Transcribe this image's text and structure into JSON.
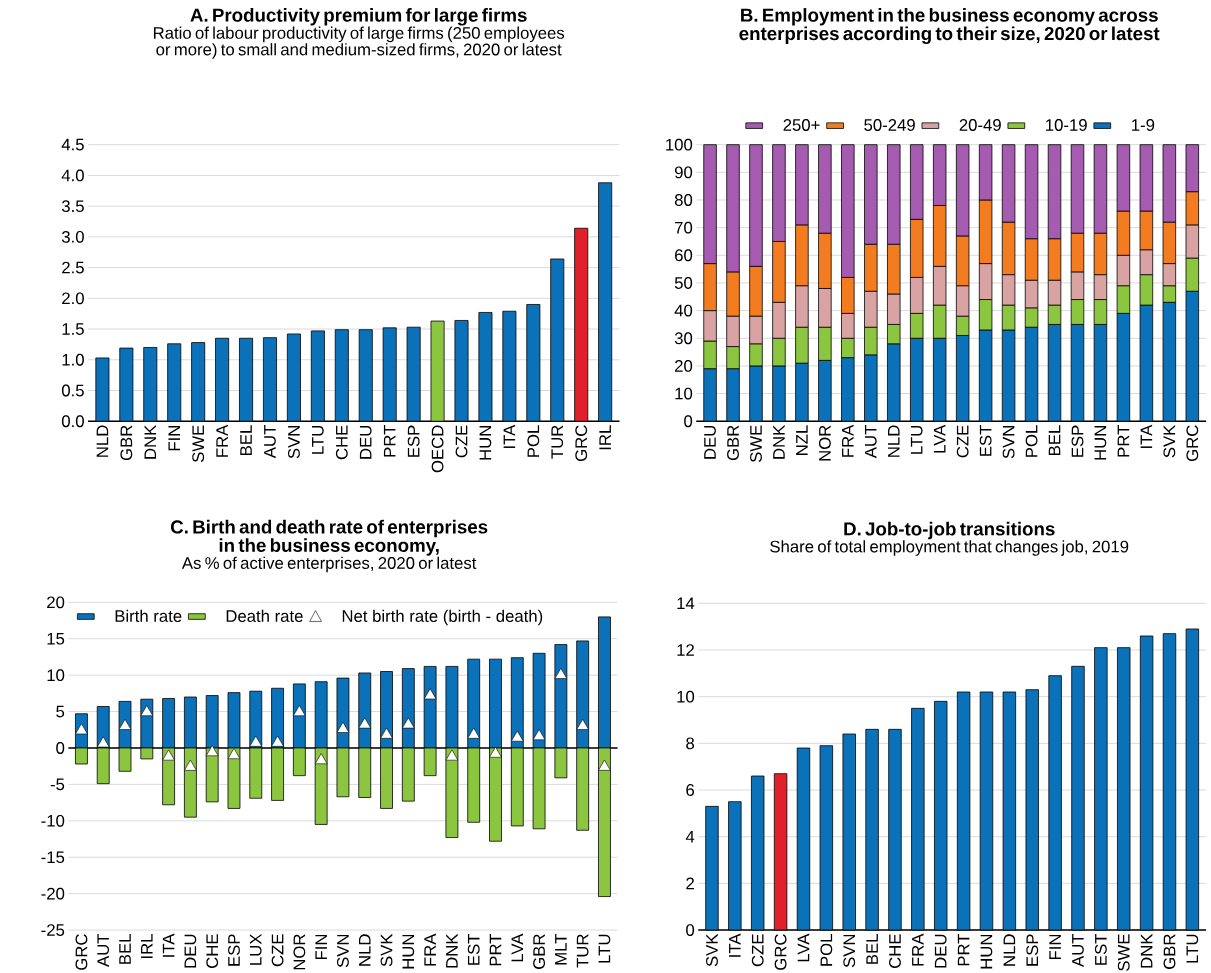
{
  "chart_data": [
    {
      "type": "bar",
      "title": "A.  Productivity premium for large firms",
      "subtitle": "Ratio of labour productivity of large firms (250 employees or more) to small and medium-sized firms, 2020 or latest",
      "categories": [
        "NLD",
        "GBR",
        "DNK",
        "FIN",
        "SWE",
        "FRA",
        "BEL",
        "AUT",
        "SVN",
        "LTU",
        "CHE",
        "DEU",
        "PRT",
        "ESP",
        "OECD",
        "CZE",
        "HUN",
        "ITA",
        "POL",
        "TUR",
        "GRC",
        "IRL"
      ],
      "values": [
        1.03,
        1.19,
        1.2,
        1.26,
        1.28,
        1.35,
        1.35,
        1.36,
        1.42,
        1.47,
        1.49,
        1.49,
        1.52,
        1.53,
        1.63,
        1.64,
        1.77,
        1.79,
        1.9,
        2.64,
        3.14,
        3.88
      ],
      "colors": [
        "#0b72ba",
        "#0b72ba",
        "#0b72ba",
        "#0b72ba",
        "#0b72ba",
        "#0b72ba",
        "#0b72ba",
        "#0b72ba",
        "#0b72ba",
        "#0b72ba",
        "#0b72ba",
        "#0b72ba",
        "#0b72ba",
        "#0b72ba",
        "#8cc540",
        "#0b72ba",
        "#0b72ba",
        "#0b72ba",
        "#0b72ba",
        "#0b72ba",
        "#e0202a",
        "#0b72ba"
      ],
      "ylim": [
        0,
        4.5
      ],
      "yticks": [
        {
          "value": 0,
          "label": "0.0"
        },
        {
          "value": 0.5,
          "label": "0.5"
        },
        {
          "value": 1,
          "label": "1.0"
        },
        {
          "value": 1.5,
          "label": "1.5"
        },
        {
          "value": 2,
          "label": "2.0"
        },
        {
          "value": 2.5,
          "label": "2.5"
        },
        {
          "value": 3,
          "label": "3.0"
        },
        {
          "value": 3.5,
          "label": "3.5"
        },
        {
          "value": 4,
          "label": "4.0"
        },
        {
          "value": 4.5,
          "label": "4.5"
        }
      ],
      "grid": "y"
    },
    {
      "type": "bar",
      "stacked": true,
      "title": "B.  Employment in the business economy across enterprises according to their size, 2020 or latest",
      "categories": [
        "DEU",
        "GBR",
        "SWE",
        "DNK",
        "NZL",
        "NOR",
        "FRA",
        "AUT",
        "NLD",
        "LTU",
        "LVA",
        "CZE",
        "EST",
        "SVN",
        "POL",
        "BEL",
        "ESP",
        "HUN",
        "PRT",
        "ITA",
        "SVK",
        "GRC"
      ],
      "series": [
        {
          "name": "1-9",
          "color": "#0b72ba",
          "values": [
            19,
            19,
            20,
            20,
            21,
            22,
            23,
            24,
            28,
            30,
            30,
            31,
            33,
            33,
            34,
            35,
            35,
            35,
            39,
            42,
            43,
            47
          ]
        },
        {
          "name": "10-19",
          "color": "#8cc540",
          "values": [
            10,
            8,
            8,
            10,
            13,
            12,
            7,
            10,
            7,
            9,
            12,
            7,
            11,
            9,
            7,
            7,
            9,
            9,
            10,
            11,
            6,
            12
          ]
        },
        {
          "name": "20-49",
          "color": "#d9a3a3",
          "values": [
            11,
            11,
            10,
            13,
            15,
            14,
            9,
            13,
            11,
            13,
            14,
            11,
            13,
            11,
            10,
            9,
            10,
            9,
            11,
            9,
            8,
            12
          ]
        },
        {
          "name": "50-249",
          "color": "#f47c20",
          "values": [
            17,
            16,
            18,
            22,
            22,
            20,
            13,
            17,
            18,
            21,
            22,
            18,
            23,
            19,
            15,
            15,
            14,
            15,
            16,
            14,
            15,
            12
          ]
        },
        {
          "name": "250+",
          "color": "#a55bb0",
          "values": [
            43,
            46,
            44,
            35,
            29,
            32,
            48,
            36,
            36,
            27,
            22,
            33,
            20,
            28,
            34,
            34,
            32,
            32,
            24,
            24,
            28,
            17
          ]
        }
      ],
      "ylim": [
        0,
        100
      ],
      "yticks": [
        0,
        10,
        20,
        30,
        40,
        50,
        60,
        70,
        80,
        90,
        100
      ],
      "grid": "y",
      "legend": "top"
    },
    {
      "type": "bar",
      "stacked": true,
      "title": "C. Birth and death rate of enterprises in the business economy,",
      "subtitle": "As % of active enterprises, 2020 or latest",
      "categories": [
        "GRC",
        "AUT",
        "BEL",
        "IRL",
        "ITA",
        "DEU",
        "CHE",
        "ESP",
        "LUX",
        "CZE",
        "NOR",
        "FIN",
        "SVN",
        "NLD",
        "SVK",
        "HUN",
        "FRA",
        "DNK",
        "EST",
        "PRT",
        "LVA",
        "GBR",
        "MLT",
        "TUR",
        "LTU"
      ],
      "series": [
        {
          "name": "Birth rate",
          "color": "#0b72ba",
          "values": [
            4.7,
            5.7,
            6.4,
            6.7,
            6.8,
            7.0,
            7.2,
            7.6,
            7.8,
            8.2,
            8.8,
            9.1,
            9.6,
            10.3,
            10.5,
            10.9,
            11.2,
            11.2,
            12.2,
            12.2,
            12.4,
            13.0,
            14.2,
            14.7,
            18.0
          ]
        },
        {
          "name": "Death rate",
          "color": "#8cc540",
          "values": [
            -2.2,
            -4.9,
            -3.2,
            -1.5,
            -7.8,
            -9.5,
            -7.4,
            -8.3,
            -6.9,
            -7.2,
            -3.8,
            -10.5,
            -6.7,
            -6.8,
            -8.3,
            -7.3,
            -3.8,
            -12.3,
            -10.2,
            -12.8,
            -10.7,
            -11.1,
            -4.1,
            -11.3,
            -20.4
          ]
        },
        {
          "name": "Net birth rate (birth - death)",
          "type": "scatter",
          "marker": "triangle",
          "color": "#ffffff",
          "values": [
            2.4,
            0.6,
            3.0,
            4.9,
            -1.2,
            -2.6,
            -0.6,
            -1.0,
            0.7,
            0.7,
            4.9,
            -1.7,
            2.6,
            3.2,
            1.8,
            3.2,
            7.2,
            -1.2,
            1.8,
            -0.8,
            1.4,
            1.6,
            10.0,
            3.0,
            -2.6
          ]
        }
      ],
      "ylim": [
        -25,
        20
      ],
      "yticks": [
        -25,
        -20,
        -15,
        -10,
        -5,
        0,
        5,
        10,
        15,
        20
      ],
      "grid": "y",
      "legend": "top left"
    },
    {
      "type": "bar",
      "title": "D. Job-to-job transitions",
      "subtitle": "Share of total employment that changes job, 2019",
      "categories": [
        "SVK",
        "ITA",
        "CZE",
        "GRC",
        "LVA",
        "POL",
        "SVN",
        "BEL",
        "CHE",
        "FRA",
        "DEU",
        "PRT",
        "HUN",
        "NLD",
        "ESP",
        "FIN",
        "AUT",
        "EST",
        "SWE",
        "DNK",
        "GBR",
        "LTU"
      ],
      "values": [
        5.3,
        5.5,
        6.6,
        6.7,
        7.8,
        7.9,
        8.4,
        8.6,
        8.6,
        9.5,
        9.8,
        10.2,
        10.2,
        10.2,
        10.3,
        10.9,
        11.3,
        12.1,
        12.1,
        12.6,
        12.7,
        12.9
      ],
      "colors": [
        "#0b72ba",
        "#0b72ba",
        "#0b72ba",
        "#e0202a",
        "#0b72ba",
        "#0b72ba",
        "#0b72ba",
        "#0b72ba",
        "#0b72ba",
        "#0b72ba",
        "#0b72ba",
        "#0b72ba",
        "#0b72ba",
        "#0b72ba",
        "#0b72ba",
        "#0b72ba",
        "#0b72ba",
        "#0b72ba",
        "#0b72ba",
        "#0b72ba",
        "#0b72ba",
        "#0b72ba"
      ],
      "ylim": [
        0,
        14
      ],
      "yticks": [
        0,
        2,
        4,
        6,
        8,
        10,
        12,
        14
      ],
      "grid": "y"
    }
  ]
}
